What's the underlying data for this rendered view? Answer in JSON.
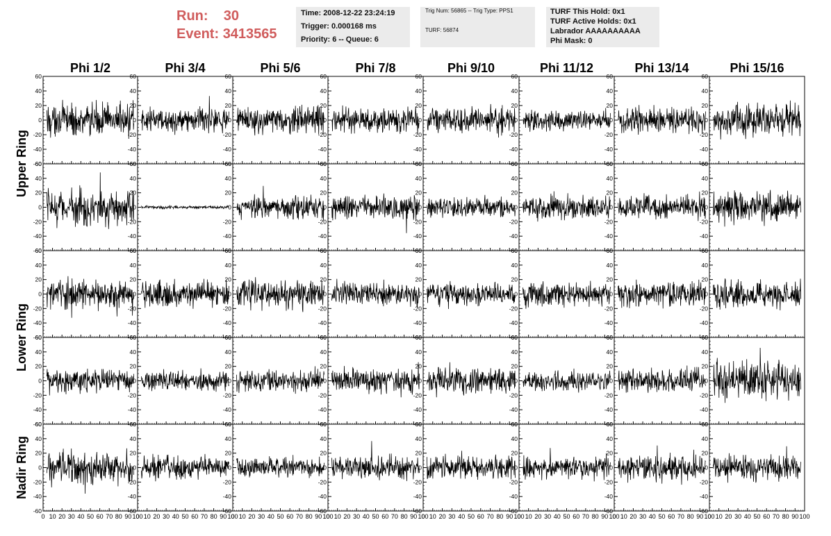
{
  "header": {
    "run_label": "Run:",
    "run_value": "30",
    "event_label": "Event:",
    "event_value": "3413565"
  },
  "info_time": {
    "time": "Time: 2008-12-22 23:24:19",
    "trigger": "Trigger: 0.000168 ms",
    "priority": "Priority: 6 -- Queue: 6"
  },
  "info_trig": {
    "trig": "Trig Num: 56865 -- Trig Type: PPS1",
    "turf": "TURF: 56874"
  },
  "info_turf": {
    "hold": "TURF This Hold: 0x1",
    "active": "TURF Active Holds: 0x1",
    "labrador": "Labrador AAAAAAAAAA",
    "phimask": "Phi Mask: 0"
  },
  "chart_data": {
    "type": "line",
    "columns": [
      "Phi 1/2",
      "Phi 3/4",
      "Phi 5/6",
      "Phi 7/8",
      "Phi 9/10",
      "Phi 11/12",
      "Phi 13/14",
      "Phi 15/16"
    ],
    "ring_labels": [
      "Upper Ring",
      "Lower Ring",
      "Nadir Ring"
    ],
    "xlim": [
      0,
      100
    ],
    "ylim": [
      -60,
      60
    ],
    "x_ticks": [
      0,
      10,
      20,
      30,
      40,
      50,
      60,
      70,
      80,
      90,
      100
    ],
    "y_ticks": [
      -60,
      -40,
      -20,
      0,
      20,
      40,
      60
    ],
    "x_tick_labels": [
      "0",
      "10",
      "20",
      "30",
      "40",
      "50",
      "60",
      "70",
      "80",
      "90",
      "100"
    ],
    "y_tick_labels": [
      "-60",
      "-40",
      "-20",
      "0",
      "20",
      "40",
      "60"
    ],
    "rows": 5,
    "amplitudes": [
      [
        20,
        14,
        16,
        15,
        16,
        12,
        15,
        19
      ],
      [
        22,
        2,
        14,
        14,
        12,
        14,
        14,
        20
      ],
      [
        18,
        16,
        17,
        14,
        14,
        15,
        16,
        16
      ],
      [
        15,
        12,
        14,
        16,
        17,
        12,
        14,
        24
      ],
      [
        20,
        14,
        12,
        14,
        14,
        14,
        16,
        16
      ]
    ],
    "samples_per_trace": 260
  }
}
